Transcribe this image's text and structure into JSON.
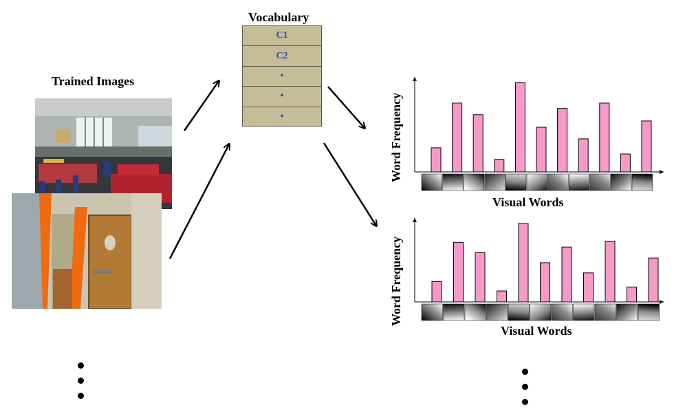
{
  "vocabulary": {
    "title": "Vocabulary",
    "rows": [
      "C1",
      "C2",
      "•",
      "•",
      "•"
    ]
  },
  "trained_images": {
    "title": "Trained Images",
    "images": [
      "classroom-photo",
      "door-hallway-photo"
    ]
  },
  "colors": {
    "bar_fill": "#f59ac8",
    "bar_stroke": "#000000",
    "vocab_fill": "#c4bd97",
    "vocab_text": "#3b3fbf"
  },
  "chart_data": [
    {
      "type": "bar",
      "xlabel": "Visual Words",
      "ylabel": "Word Frequency",
      "values": [
        0.27,
        0.77,
        0.64,
        0.14,
        1.0,
        0.5,
        0.71,
        0.37,
        0.77,
        0.2,
        0.57
      ]
    },
    {
      "type": "bar",
      "xlabel": "Visual Words",
      "ylabel": "Word Frequency",
      "values": [
        0.26,
        0.76,
        0.63,
        0.14,
        1.0,
        0.5,
        0.7,
        0.37,
        0.77,
        0.19,
        0.56
      ]
    }
  ]
}
